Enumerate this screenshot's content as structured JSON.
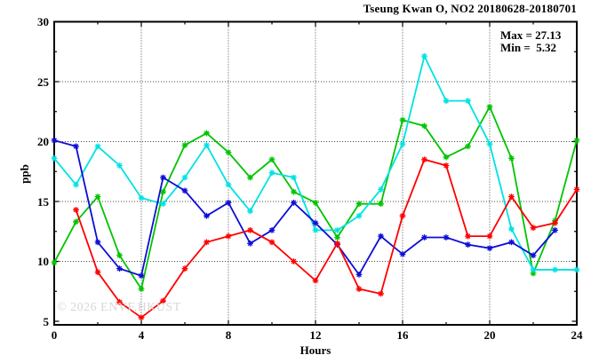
{
  "chart_data": {
    "type": "line",
    "title": "Tseung Kwan O, NO2 20180628-20180701",
    "xlabel": "Hours",
    "ylabel": "ppb",
    "xlim": [
      0,
      24
    ],
    "ylim": [
      5,
      30
    ],
    "grid": "dotted-major",
    "legend_position": "none",
    "x_major_ticks": [
      0,
      4,
      8,
      12,
      16,
      20,
      24
    ],
    "x_tick_labels": [
      "0",
      "4",
      "8",
      "12",
      "16",
      "20",
      "24"
    ],
    "x_minor_ticks": [
      2,
      6,
      10,
      14,
      18,
      22
    ],
    "y_major_ticks": [
      5,
      10,
      15,
      20,
      25,
      30
    ],
    "y_tick_labels": [
      "5",
      "10",
      "15",
      "20",
      "25",
      "30"
    ],
    "y_minor_ticks": [
      7.5,
      12.5,
      17.5,
      22.5,
      27.5
    ],
    "y_gridlines": [
      10,
      15,
      20,
      25
    ],
    "x_gridlines": [
      4,
      8,
      12,
      16,
      20
    ],
    "annotations": {
      "max_label": "Max = 27.13",
      "min_label": "Min =  5.32"
    },
    "stats": {
      "max": 27.13,
      "min": 5.32
    },
    "watermark": "© 2026 ENVF,HKUST",
    "marker": "asterisk",
    "x": [
      0,
      1,
      2,
      3,
      4,
      5,
      6,
      7,
      8,
      9,
      10,
      11,
      12,
      13,
      14,
      15,
      16,
      17,
      18,
      19,
      20,
      21,
      22,
      23,
      24
    ],
    "series": [
      {
        "name": "green",
        "color": "#00c400",
        "values": [
          9.9,
          13.3,
          15.4,
          10.5,
          7.7,
          15.8,
          19.7,
          20.7,
          19.1,
          17.0,
          18.5,
          15.8,
          14.9,
          12.0,
          14.8,
          14.8,
          21.8,
          21.3,
          18.7,
          19.6,
          22.9,
          18.6,
          9.0,
          13.4,
          20.1
        ]
      },
      {
        "name": "cyan",
        "color": "#00e2e2",
        "values": [
          18.6,
          16.4,
          19.6,
          18.0,
          15.3,
          14.8,
          17.0,
          19.7,
          16.4,
          14.2,
          17.4,
          17.0,
          12.6,
          12.6,
          13.8,
          16.0,
          19.8,
          27.13,
          23.4,
          23.4,
          19.8,
          12.7,
          9.3,
          9.3,
          9.3
        ]
      },
      {
        "name": "blue",
        "color": "#0d0dd6",
        "values": [
          20.1,
          19.6,
          11.6,
          9.4,
          8.8,
          17.0,
          15.9,
          13.8,
          14.9,
          11.5,
          12.6,
          14.9,
          13.2,
          11.4,
          8.9,
          12.1,
          10.6,
          12.0,
          12.0,
          11.4,
          11.1,
          11.6,
          10.5,
          12.6,
          null
        ]
      },
      {
        "name": "red",
        "color": "#ff0000",
        "values": [
          null,
          14.3,
          9.1,
          6.6,
          5.32,
          6.7,
          9.4,
          11.6,
          12.1,
          12.6,
          11.6,
          10.0,
          8.4,
          11.5,
          7.7,
          7.3,
          13.8,
          18.5,
          18.0,
          12.1,
          12.1,
          15.4,
          12.8,
          13.2,
          16.0
        ]
      }
    ],
    "frame_color": "#000000",
    "grid_color": "#454545"
  }
}
